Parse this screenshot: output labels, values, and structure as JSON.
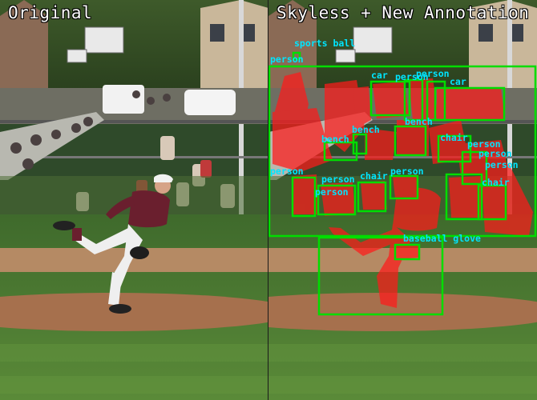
{
  "panels": {
    "left_title": "Original",
    "right_title": "Skyless + New Annotation"
  },
  "colors": {
    "box": "#00dd00",
    "label": "#00e5ff",
    "mask": "#ff1a1a",
    "grass": "#4f7a34",
    "dirt": "#b07a56",
    "jersey": "#6a1f2e"
  },
  "annotations": [
    {
      "label": "sports ball"
    },
    {
      "label": "person"
    },
    {
      "label": "car"
    },
    {
      "label": "person"
    },
    {
      "label": "person"
    },
    {
      "label": "car"
    },
    {
      "label": "bench"
    },
    {
      "label": "bench"
    },
    {
      "label": "bench"
    },
    {
      "label": "chair"
    },
    {
      "label": "person"
    },
    {
      "label": "person"
    },
    {
      "label": "person"
    },
    {
      "label": "person"
    },
    {
      "label": "person"
    },
    {
      "label": "chair"
    },
    {
      "label": "person"
    },
    {
      "label": "chair"
    },
    {
      "label": "person"
    },
    {
      "label": "baseball glove"
    }
  ]
}
